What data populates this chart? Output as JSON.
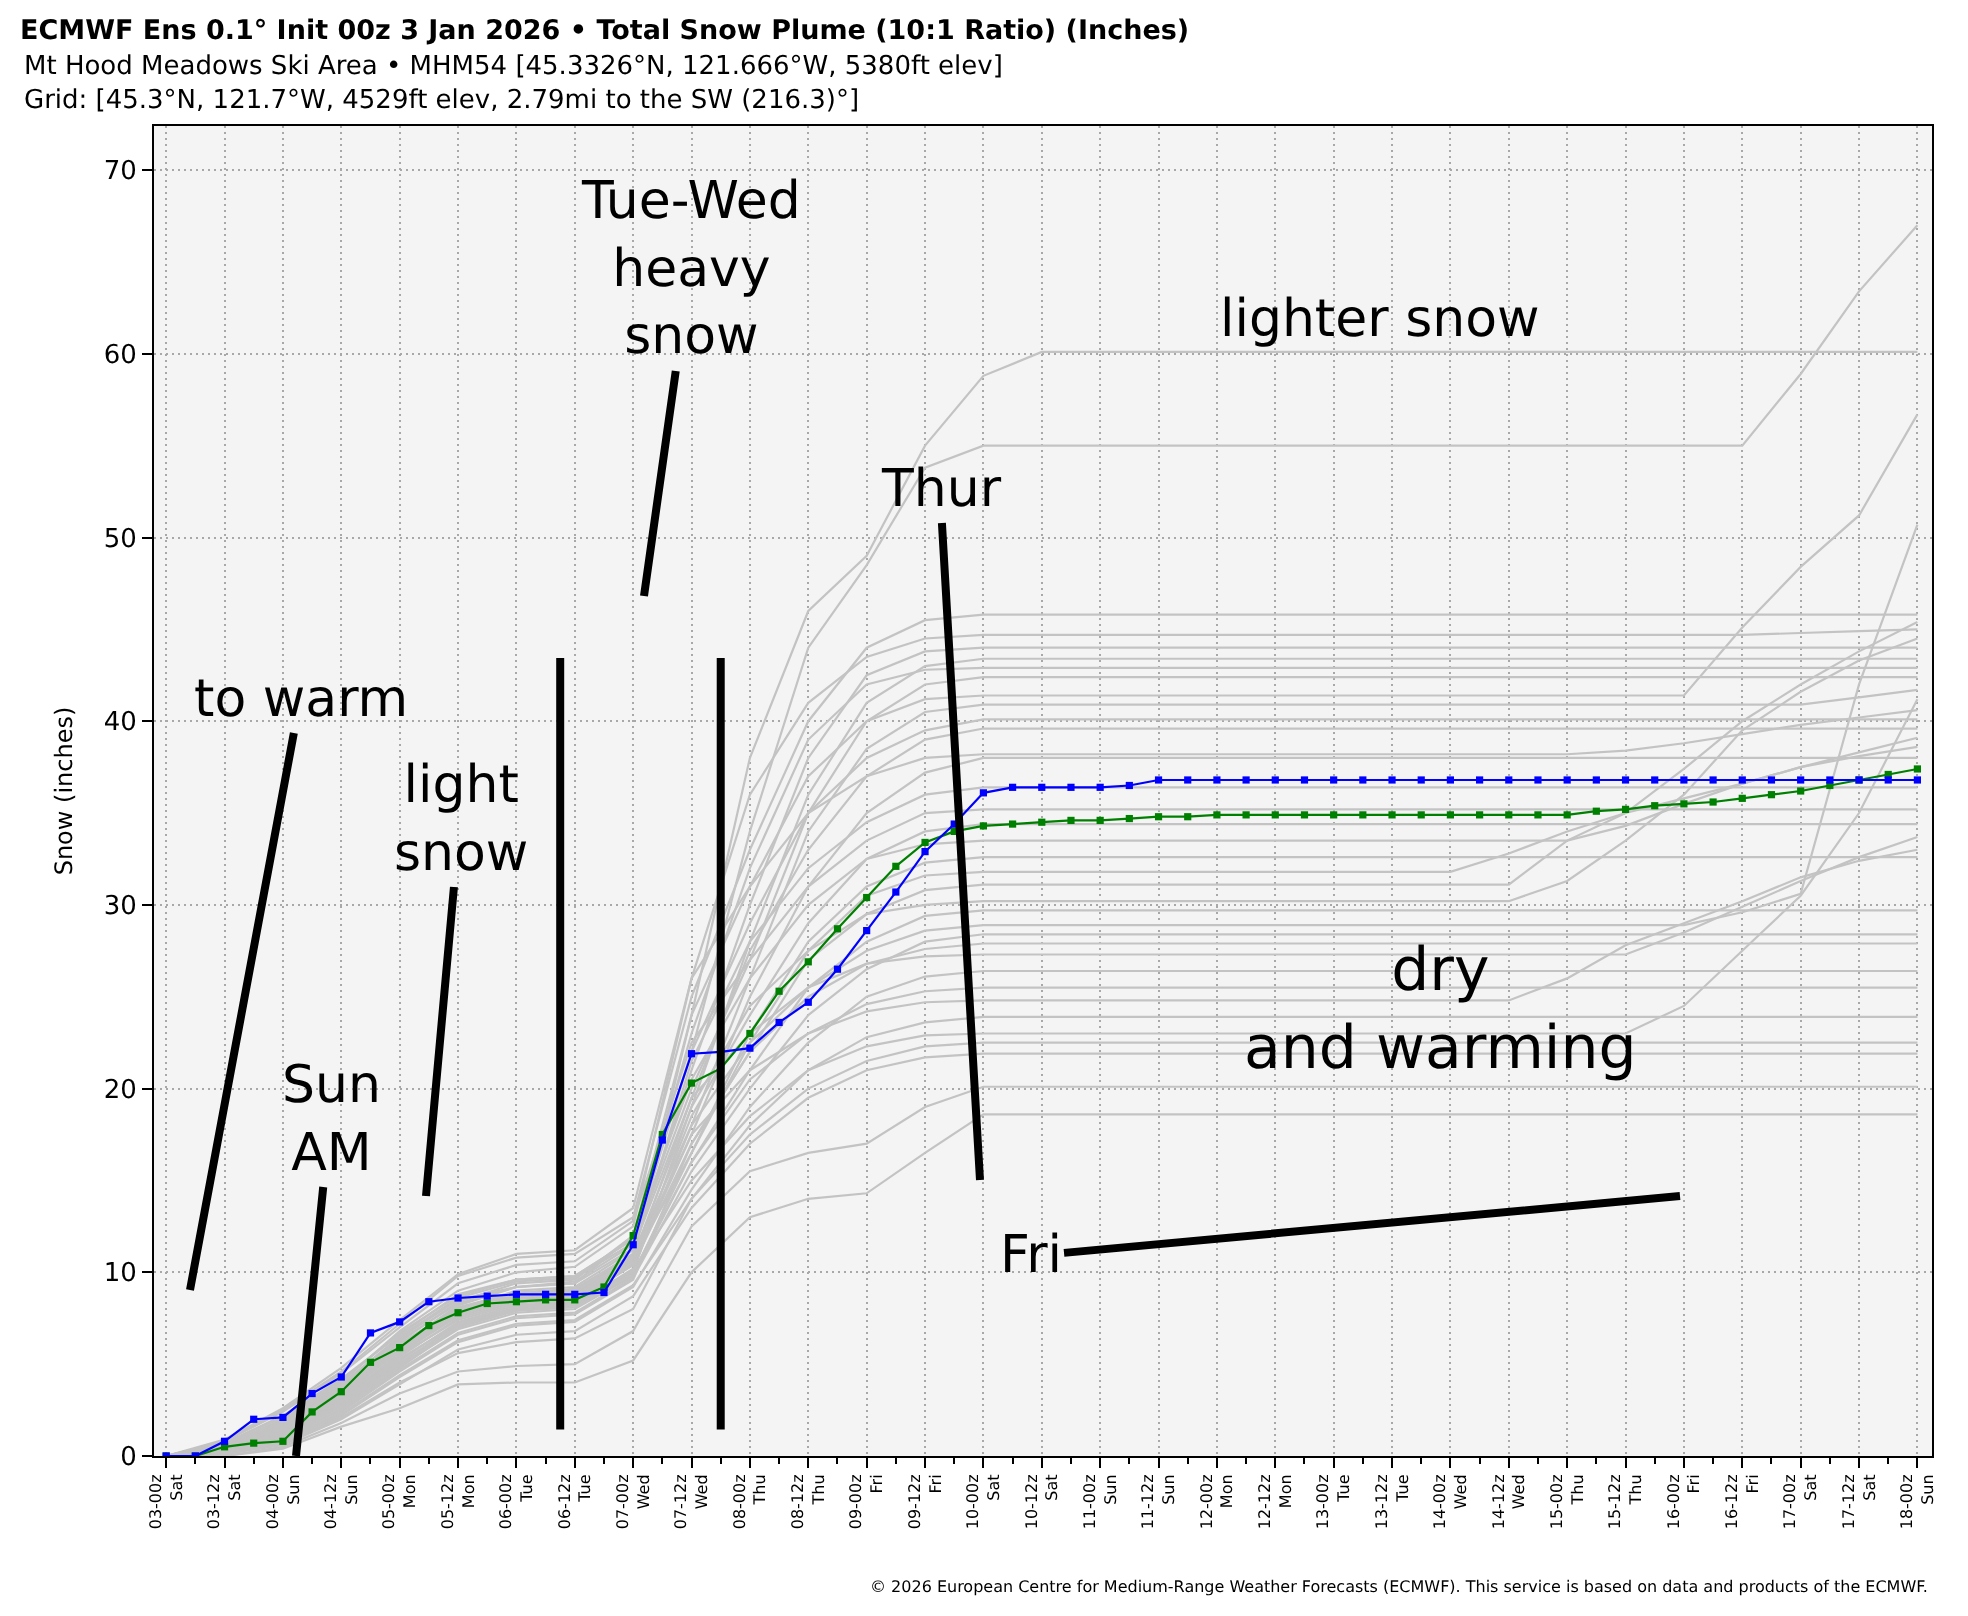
{
  "chart_data": {
    "type": "line",
    "title": "ECMWF Ens 0.1° Init 00z 3 Jan 2026 • Total Snow Plume (10:1 Ratio) (Inches)",
    "subtitle": "Mt Hood Meadows Ski Area • MHM54 [45.3326°N, 121.666°W, 5380ft elev]\nGrid: [45.3°N, 121.7°W, 4529ft elev, 2.79mi to the SW (216.3)°]",
    "ylabel": "Snow (inches)",
    "annotations": [
      "Tue-Wed\nheavy\nsnow",
      "lighter snow",
      "Thur",
      "to warm",
      "light\nsnow",
      "Sun\nAM",
      "dry\nand warming",
      "Fri",
      "© 2026 European Centre for Medium-Range Weather Forecasts (ECMWF). This service is based on data and products of the ECMWF."
    ],
    "x": [
      "2026-01-03T00:00",
      "2026-01-03T12:00",
      "2026-01-04T00:00",
      "2026-01-04T12:00",
      "2026-01-05T00:00",
      "2026-01-05T12:00",
      "2026-01-06T00:00",
      "2026-01-06T12:00",
      "2026-01-07T00:00",
      "2026-01-07T12:00",
      "2026-01-08T00:00",
      "2026-01-08T12:00",
      "2026-01-09T00:00",
      "2026-01-09T12:00",
      "2026-01-10T00:00",
      "2026-01-10T12:00",
      "2026-01-11T00:00",
      "2026-01-11T12:00",
      "2026-01-12T00:00",
      "2026-01-12T12:00",
      "2026-01-13T00:00",
      "2026-01-13T12:00",
      "2026-01-14T00:00",
      "2026-01-14T12:00",
      "2026-01-15T00:00",
      "2026-01-15T12:00",
      "2026-01-16T00:00",
      "2026-01-16T12:00",
      "2026-01-17T00:00",
      "2026-01-17T12:00",
      "2026-01-18T00:00"
    ],
    "xlim": [
      "2026-01-02T21:30",
      "2026-01-18T03:00"
    ],
    "ylim": [
      0,
      72.4
    ],
    "xticks": [
      {
        "value": "2026-01-03T00:00",
        "label": "03-00z\nSat"
      },
      {
        "value": "2026-01-03T06:00",
        "label": null
      },
      {
        "value": "2026-01-03T12:00",
        "label": "03-12z\nSat"
      },
      {
        "value": "2026-01-03T18:00",
        "label": null
      },
      {
        "value": "2026-01-04T00:00",
        "label": "04-00z\nSun"
      },
      {
        "value": "2026-01-04T06:00",
        "label": null
      },
      {
        "value": "2026-01-04T12:00",
        "label": "04-12z\nSun"
      },
      {
        "value": "2026-01-04T18:00",
        "label": null
      },
      {
        "value": "2026-01-05T00:00",
        "label": "05-00z\nMon"
      },
      {
        "value": "2026-01-05T06:00",
        "label": null
      },
      {
        "value": "2026-01-05T12:00",
        "label": "05-12z\nMon"
      },
      {
        "value": "2026-01-05T18:00",
        "label": null
      },
      {
        "value": "2026-01-06T00:00",
        "label": "06-00z\nTue"
      },
      {
        "value": "2026-01-06T06:00",
        "label": null
      },
      {
        "value": "2026-01-06T12:00",
        "label": "06-12z\nTue"
      },
      {
        "value": "2026-01-06T18:00",
        "label": null
      },
      {
        "value": "2026-01-07T00:00",
        "label": "07-00z\nWed"
      },
      {
        "value": "2026-01-07T06:00",
        "label": null
      },
      {
        "value": "2026-01-07T12:00",
        "label": "07-12z\nWed"
      },
      {
        "value": "2026-01-07T18:00",
        "label": null
      },
      {
        "value": "2026-01-08T00:00",
        "label": "08-00z\nThu"
      },
      {
        "value": "2026-01-08T06:00",
        "label": null
      },
      {
        "value": "2026-01-08T12:00",
        "label": "08-12z\nThu"
      },
      {
        "value": "2026-01-08T18:00",
        "label": null
      },
      {
        "value": "2026-01-09T00:00",
        "label": "09-00z\nFri"
      },
      {
        "value": "2026-01-09T06:00",
        "label": null
      },
      {
        "value": "2026-01-09T12:00",
        "label": "09-12z\nFri"
      },
      {
        "value": "2026-01-09T18:00",
        "label": null
      },
      {
        "value": "2026-01-10T00:00",
        "label": "10-00z\nSat"
      },
      {
        "value": "2026-01-10T06:00",
        "label": null
      },
      {
        "value": "2026-01-10T12:00",
        "label": "10-12z\nSat"
      },
      {
        "value": "2026-01-10T18:00",
        "label": null
      },
      {
        "value": "2026-01-11T00:00",
        "label": "11-00z\nSun"
      },
      {
        "value": "2026-01-11T06:00",
        "label": null
      },
      {
        "value": "2026-01-11T12:00",
        "label": "11-12z\nSun"
      },
      {
        "value": "2026-01-11T18:00",
        "label": null
      },
      {
        "value": "2026-01-12T00:00",
        "label": "12-00z\nMon"
      },
      {
        "value": "2026-01-12T06:00",
        "label": null
      },
      {
        "value": "2026-01-12T12:00",
        "label": "12-12z\nMon"
      },
      {
        "value": "2026-01-12T18:00",
        "label": null
      },
      {
        "value": "2026-01-13T00:00",
        "label": "13-00z\nTue"
      },
      {
        "value": "2026-01-13T06:00",
        "label": null
      },
      {
        "value": "2026-01-13T12:00",
        "label": "13-12z\nTue"
      },
      {
        "value": "2026-01-13T18:00",
        "label": null
      },
      {
        "value": "2026-01-14T00:00",
        "label": "14-00z\nWed"
      },
      {
        "value": "2026-01-14T06:00",
        "label": null
      },
      {
        "value": "2026-01-14T12:00",
        "label": "14-12z\nWed"
      },
      {
        "value": "2026-01-14T18:00",
        "label": null
      },
      {
        "value": "2026-01-15T00:00",
        "label": "15-00z\nThu"
      },
      {
        "value": "2026-01-15T06:00",
        "label": null
      },
      {
        "value": "2026-01-15T12:00",
        "label": "15-12z\nThu"
      },
      {
        "value": "2026-01-15T18:00",
        "label": null
      },
      {
        "value": "2026-01-16T00:00",
        "label": "16-00z\nFri"
      },
      {
        "value": "2026-01-16T06:00",
        "label": null
      },
      {
        "value": "2026-01-16T12:00",
        "label": "16-12z\nFri"
      },
      {
        "value": "2026-01-16T18:00",
        "label": null
      },
      {
        "value": "2026-01-17T00:00",
        "label": "17-00z\nSat"
      },
      {
        "value": "2026-01-17T06:00",
        "label": null
      },
      {
        "value": "2026-01-17T12:00",
        "label": "17-12z\nSat"
      },
      {
        "value": "2026-01-17T18:00",
        "label": null
      },
      {
        "value": "2026-01-18T00:00",
        "label": "18-00z\nSun"
      }
    ],
    "yticks": [
      0,
      10,
      20,
      30,
      40,
      50,
      60,
      70
    ],
    "grid": true,
    "marker": "square",
    "ref_lines": [
      {
        "axis": "x",
        "value": "2026-01-06T09:00",
        "color": "#000000"
      },
      {
        "axis": "x",
        "value": "2026-01-07T18:00",
        "color": "#000000"
      }
    ],
    "series": [
      {
        "color": "#c3c3c3",
        "marker": "none",
        "values": [
          0,
          0.3,
          1.2,
          3,
          5.5,
          7.8,
          8.6,
          8.8,
          11,
          24,
          38,
          46,
          49,
          55,
          58.8,
          60.1,
          60.1,
          60.1,
          60.1,
          60.1,
          60.1,
          60.1,
          60.1,
          60.1,
          60.1,
          60.1,
          60.1,
          60.1,
          60.1,
          60.1,
          60.1
        ]
      },
      {
        "color": "#c3c3c3",
        "marker": "none",
        "values": [
          0,
          0.5,
          1.8,
          3.8,
          6.4,
          8.5,
          9.2,
          9.4,
          12,
          22,
          34,
          44,
          48.5,
          53.8,
          55,
          55,
          55,
          55,
          55,
          55,
          55,
          55,
          55,
          55,
          55,
          55,
          55,
          55,
          58.9,
          63.4,
          67
        ]
      },
      {
        "color": "#c3c3c3",
        "marker": "none",
        "values": [
          0,
          0.8,
          2.5,
          4.6,
          7.2,
          9.8,
          10.8,
          11,
          13,
          25,
          33,
          40,
          44,
          45.5,
          45.8,
          45.8,
          45.8,
          45.8,
          45.8,
          45.8,
          45.8,
          45.8,
          45.8,
          45.8,
          45.8,
          45.8,
          45.8,
          45.8,
          45.8,
          45.8,
          45.8
        ]
      },
      {
        "color": "#c3c3c3",
        "marker": "none",
        "values": [
          0,
          0.6,
          2,
          4,
          6.8,
          9,
          10,
          10.3,
          12.5,
          26,
          36,
          41,
          43.5,
          44.5,
          44.7,
          44.7,
          44.7,
          44.7,
          44.7,
          44.7,
          44.7,
          44.7,
          44.7,
          44.7,
          44.7,
          44.7,
          44.7,
          44.7,
          44.8,
          44.9,
          45
        ]
      },
      {
        "color": "#c3c3c3",
        "marker": "none",
        "values": [
          0,
          0.4,
          1.5,
          3.2,
          5.8,
          8,
          9,
          9.2,
          11.2,
          21,
          30,
          38,
          42.5,
          43.8,
          44,
          44,
          44,
          44,
          44,
          44,
          44,
          44,
          44,
          44,
          44,
          44,
          44,
          44,
          44,
          44,
          44
        ]
      },
      {
        "color": "#c3c3c3",
        "marker": "none",
        "values": [
          0,
          0.2,
          1,
          2.8,
          5,
          7.2,
          8.1,
          8.3,
          10,
          19,
          28,
          36,
          41,
          43,
          43.4,
          43.4,
          43.4,
          43.4,
          43.4,
          43.4,
          43.4,
          43.4,
          43.4,
          43.4,
          43.4,
          43.4,
          43.4,
          43.4,
          43.4,
          43.4,
          43.4
        ]
      },
      {
        "color": "#c3c3c3",
        "marker": "none",
        "values": [
          0,
          0.7,
          2.2,
          4.2,
          6.6,
          8.8,
          9.6,
          9.8,
          11.8,
          23,
          32,
          39,
          42,
          42.8,
          42.9,
          42.9,
          42.9,
          42.9,
          42.9,
          42.9,
          42.9,
          42.9,
          42.9,
          42.9,
          42.9,
          42.9,
          42.9,
          42.9,
          42.9,
          42.9,
          42.9
        ]
      },
      {
        "color": "#c3c3c3",
        "marker": "none",
        "values": [
          0,
          0.3,
          1.4,
          3.4,
          6,
          8.2,
          9.2,
          9.5,
          11.5,
          20,
          27,
          35,
          40,
          42,
          42.4,
          42.4,
          42.4,
          42.4,
          42.4,
          42.4,
          42.4,
          42.4,
          42.4,
          42.4,
          42.4,
          42.4,
          42.4,
          42.4,
          42.4,
          42.4,
          42.4
        ]
      },
      {
        "color": "#c3c3c3",
        "marker": "none",
        "values": [
          0,
          0.5,
          1.6,
          3.6,
          6.2,
          8.4,
          9.4,
          9.6,
          12,
          24,
          31,
          37,
          40,
          41.2,
          41.4,
          41.4,
          41.4,
          41.4,
          41.4,
          41.4,
          41.4,
          41.4,
          41.4,
          41.4,
          41.4,
          41.4,
          41.4,
          45.1,
          48.4,
          51.2,
          56.7
        ]
      },
      {
        "color": "#c3c3c3",
        "marker": "none",
        "values": [
          0,
          0.1,
          0.9,
          2.6,
          4.8,
          7,
          8,
          8.2,
          10.2,
          18,
          26,
          34,
          38.5,
          40.5,
          40.9,
          40.9,
          40.9,
          40.9,
          40.9,
          40.9,
          40.9,
          40.9,
          40.9,
          40.9,
          40.9,
          40.9,
          40.9,
          40.9,
          40.9,
          41.3,
          41.7
        ]
      },
      {
        "color": "#c3c3c3",
        "marker": "none",
        "values": [
          0,
          0.6,
          1.9,
          3.9,
          6.5,
          8.6,
          9.5,
          9.7,
          11.6,
          22,
          29,
          35,
          38,
          39.5,
          40.1,
          40.1,
          40.1,
          40.1,
          40.1,
          40.1,
          40.1,
          40.1,
          40.1,
          40.1,
          40.1,
          40.1,
          40.1,
          40.1,
          40.1,
          40.1,
          40.1
        ]
      },
      {
        "color": "#c3c3c3",
        "marker": "none",
        "values": [
          0,
          0.4,
          1.3,
          3.1,
          5.6,
          7.6,
          8.5,
          8.7,
          10.6,
          19.5,
          27.5,
          33,
          37,
          39,
          39.6,
          39.6,
          39.6,
          39.6,
          39.6,
          39.6,
          39.6,
          39.6,
          39.6,
          39.6,
          39.6,
          39.6,
          39.6,
          39.6,
          39.6,
          39.6,
          39.6
        ]
      },
      {
        "color": "#c3c3c3",
        "marker": "none",
        "values": [
          0,
          0.9,
          2.6,
          4.8,
          7.4,
          9.9,
          11,
          11.2,
          13.5,
          26,
          31,
          35,
          37,
          38,
          38.2,
          38.2,
          38.2,
          38.2,
          38.2,
          38.2,
          38.2,
          38.2,
          38.2,
          38.2,
          38.2,
          38.4,
          38.8,
          39.3,
          39.8,
          40.2,
          40.6
        ]
      },
      {
        "color": "#c3c3c3",
        "marker": "none",
        "values": [
          0,
          0.2,
          1.1,
          2.9,
          5.2,
          7.3,
          8.2,
          8.4,
          10.4,
          17.5,
          25,
          31,
          35,
          37.2,
          38,
          38,
          38,
          38,
          38,
          38,
          38,
          38,
          38,
          38,
          38,
          38,
          38,
          38,
          38,
          38,
          38
        ]
      },
      {
        "color": "#c3c3c3",
        "marker": "none",
        "values": [
          0,
          0.5,
          1.7,
          3.7,
          6.1,
          8.1,
          8.9,
          9.1,
          11,
          21.5,
          28,
          32,
          34.5,
          36,
          36.4,
          36.4,
          36.4,
          36.4,
          36.4,
          36.4,
          36.4,
          36.4,
          36.4,
          36.4,
          36.4,
          36.4,
          36.4,
          36.4,
          36.4,
          36.4,
          36.4
        ]
      },
      {
        "color": "#c3c3c3",
        "marker": "none",
        "values": [
          0,
          0.3,
          1.2,
          3,
          5.4,
          7.5,
          8.4,
          8.6,
          10.5,
          18.5,
          24,
          29,
          32.5,
          34,
          34.4,
          34.4,
          34.4,
          34.4,
          34.4,
          34.4,
          34.4,
          34.4,
          34.4,
          34.4,
          34.4,
          34.4,
          34.4,
          34.4,
          34.4,
          34.4,
          34.4
        ]
      },
      {
        "color": "#c3c3c3",
        "marker": "none",
        "values": [
          0,
          0.7,
          2.1,
          4.1,
          6.7,
          8.7,
          9.6,
          9.8,
          11.8,
          20.5,
          26,
          30,
          32.5,
          33.3,
          33.5,
          33.5,
          33.5,
          33.5,
          33.5,
          33.5,
          33.5,
          33.5,
          33.5,
          33.5,
          33.5,
          34.3,
          35.5,
          36.6,
          37.5,
          38.1,
          38.6
        ]
      },
      {
        "color": "#c3c3c3",
        "marker": "none",
        "values": [
          0,
          0.4,
          1.4,
          3.3,
          5.7,
          7.7,
          8.6,
          8.8,
          10.7,
          16.5,
          23,
          28,
          31,
          32.3,
          32.6,
          32.6,
          32.6,
          32.6,
          32.6,
          32.6,
          32.6,
          32.6,
          32.6,
          32.6,
          32.6,
          32.6,
          32.6,
          32.6,
          32.6,
          32.6,
          32.6
        ]
      },
      {
        "color": "#c3c3c3",
        "marker": "none",
        "values": [
          0,
          0.1,
          0.8,
          2.4,
          4.6,
          6.6,
          7.5,
          7.7,
          9.6,
          17,
          22,
          27,
          29.5,
          30.8,
          31.1,
          31.1,
          31.1,
          31.1,
          31.1,
          31.1,
          31.1,
          31.1,
          31.1,
          31.1,
          33.5,
          35,
          37.4,
          40,
          42,
          43.8,
          45.4
        ]
      },
      {
        "color": "#c3c3c3",
        "marker": "none",
        "values": [
          0,
          0.5,
          1.6,
          3.5,
          5.9,
          7.9,
          8.8,
          9,
          10.9,
          19,
          24.5,
          27.5,
          29.5,
          30,
          30.2,
          30.2,
          30.2,
          30.2,
          30.2,
          30.2,
          30.2,
          30.2,
          30.2,
          30.2,
          31.3,
          33.5,
          36,
          39.5,
          41.6,
          43.3,
          44.5
        ]
      },
      {
        "color": "#c3c3c3",
        "marker": "none",
        "values": [
          0,
          0.3,
          1,
          2.7,
          4.9,
          6.9,
          7.8,
          8,
          9.8,
          16,
          21,
          25.5,
          28,
          29.4,
          29.7,
          29.7,
          29.7,
          29.7,
          29.7,
          29.7,
          29.7,
          29.7,
          29.7,
          29.7,
          29.7,
          29.7,
          29.7,
          29.7,
          29.7,
          29.7,
          29.7
        ]
      },
      {
        "color": "#c3c3c3",
        "marker": "none",
        "values": [
          0,
          0.6,
          1.8,
          3.6,
          6,
          8,
          8.8,
          9,
          11,
          18,
          22.5,
          25.5,
          27.5,
          28.6,
          28.9,
          28.9,
          28.9,
          28.9,
          28.9,
          28.9,
          28.9,
          28.9,
          28.9,
          28.9,
          28.9,
          28.9,
          28.9,
          29.6,
          30.6,
          42,
          50.7
        ]
      },
      {
        "color": "#c3c3c3",
        "marker": "none",
        "values": [
          0,
          0.2,
          0.9,
          2.5,
          4.7,
          6.7,
          7.6,
          7.8,
          9.7,
          15.5,
          20,
          24,
          26.5,
          28,
          28.4,
          28.4,
          28.4,
          28.4,
          28.4,
          28.4,
          28.4,
          28.4,
          28.4,
          28.4,
          28.4,
          28.4,
          28.4,
          28.4,
          28.4,
          28.4,
          28.4
        ]
      },
      {
        "color": "#c3c3c3",
        "marker": "none",
        "values": [
          0,
          0.4,
          1.3,
          3.2,
          5.5,
          7.4,
          8.3,
          8.5,
          10.4,
          17,
          22,
          25,
          26.8,
          27.6,
          27.9,
          27.9,
          27.9,
          27.9,
          27.9,
          27.9,
          27.9,
          27.9,
          27.9,
          27.9,
          27.9,
          27.9,
          27.9,
          27.9,
          27.9,
          27.9,
          27.9
        ]
      },
      {
        "color": "#c3c3c3",
        "marker": "none",
        "values": [
          0,
          0.6,
          1.9,
          3.8,
          6.3,
          8.3,
          9.2,
          9.4,
          11.3,
          19.5,
          23,
          25.5,
          26.8,
          27.2,
          27.3,
          27.3,
          27.3,
          27.3,
          27.3,
          27.3,
          27.3,
          27.3,
          27.3,
          27.3,
          27.3,
          27.3,
          28.5,
          29.9,
          31.3,
          32.6,
          33.7
        ]
      },
      {
        "color": "#c3c3c3",
        "marker": "none",
        "values": [
          0,
          0.1,
          0.7,
          2.2,
          4.3,
          6.2,
          7.1,
          7.3,
          9.2,
          14.5,
          19,
          22.5,
          25,
          26.1,
          26.4,
          26.4,
          26.4,
          26.4,
          26.4,
          26.4,
          26.4,
          26.4,
          26.4,
          26.4,
          26.4,
          26.4,
          26.4,
          26.4,
          26.4,
          26.4,
          26.4
        ]
      },
      {
        "color": "#c3c3c3",
        "marker": "none",
        "values": [
          0,
          0.3,
          1.1,
          2.9,
          5.1,
          7.1,
          8,
          8.2,
          10,
          16,
          20.5,
          23,
          24.6,
          25.3,
          25.5,
          25.5,
          25.5,
          25.5,
          25.5,
          25.5,
          25.5,
          25.5,
          25.5,
          25.5,
          25.5,
          25.5,
          25.5,
          25.5,
          25.5,
          25.5,
          25.5
        ]
      },
      {
        "color": "#c3c3c3",
        "marker": "none",
        "values": [
          0,
          0.5,
          1.5,
          3.4,
          5.8,
          7.8,
          8.7,
          8.9,
          10.8,
          17.5,
          21,
          23,
          24.2,
          24.7,
          24.8,
          24.8,
          24.8,
          24.8,
          24.8,
          24.8,
          24.8,
          24.8,
          24.8,
          24.8,
          26,
          27.8,
          29,
          30.2,
          31.5,
          32.4,
          33
        ]
      },
      {
        "color": "#c3c3c3",
        "marker": "none",
        "values": [
          0,
          0.2,
          0.8,
          2.3,
          4.4,
          6.3,
          7.2,
          7.4,
          9.3,
          14,
          18,
          21,
          22.8,
          23.6,
          23.9,
          23.9,
          23.9,
          23.9,
          23.9,
          23.9,
          23.9,
          23.9,
          23.9,
          23.9,
          23.9,
          23.9,
          23.9,
          23.9,
          23.9,
          23.9,
          23.9
        ]
      },
      {
        "color": "#c3c3c3",
        "marker": "none",
        "values": [
          0,
          0.4,
          1.2,
          3,
          5.3,
          7.2,
          8.1,
          8.3,
          10.1,
          15,
          18.5,
          21,
          22.3,
          22.9,
          23,
          23,
          23,
          23,
          23,
          23,
          23,
          23,
          23,
          23,
          23,
          23,
          24.5,
          27.5,
          30.5,
          35,
          41.2
        ]
      },
      {
        "color": "#c3c3c3",
        "marker": "none",
        "values": [
          0,
          0.1,
          0.6,
          2,
          3.9,
          5.8,
          6.6,
          6.8,
          8.7,
          13.5,
          17,
          19.5,
          21,
          21.7,
          21.9,
          21.9,
          21.9,
          21.9,
          21.9,
          21.9,
          21.9,
          21.9,
          21.9,
          21.9,
          21.9,
          21.9,
          21.9,
          21.9,
          21.9,
          21.9,
          21.9
        ]
      },
      {
        "color": "#c3c3c3",
        "marker": "none",
        "values": [
          0,
          0,
          0.5,
          1.8,
          3.4,
          4.6,
          4.9,
          5,
          6.8,
          12.5,
          15.5,
          16.5,
          17,
          19,
          20.1,
          20.1,
          20.1,
          20.1,
          20.1,
          20.1,
          20.1,
          20.1,
          20.1,
          20.1,
          20.1,
          20.1,
          20.1,
          20.1,
          20.1,
          20.1,
          20.1
        ]
      },
      {
        "color": "#c3c3c3",
        "marker": "none",
        "values": [
          0,
          0,
          0.4,
          1.6,
          2.6,
          3.9,
          4,
          4,
          5.2,
          10,
          13,
          14,
          14.3,
          16.5,
          18.6,
          18.6,
          18.6,
          18.6,
          18.6,
          18.6,
          18.6,
          18.6,
          18.6,
          18.6,
          18.6,
          18.6,
          18.6,
          18.6,
          18.6,
          18.6,
          18.6
        ]
      },
      {
        "color": "#c3c3c3",
        "marker": "none",
        "values": [
          0,
          0.8,
          2.4,
          4.5,
          7,
          9.4,
          10.4,
          10.6,
          12.8,
          22.5,
          27,
          31,
          33.5,
          35,
          35.2,
          35.2,
          35.2,
          35.2,
          35.2,
          35.2,
          35.2,
          35.2,
          35.2,
          35.2,
          35.2,
          35.2,
          35.2,
          35.2,
          35.2,
          35.2,
          35.2
        ]
      },
      {
        "color": "#c3c3c3",
        "marker": "none",
        "values": [
          0,
          0.3,
          1.1,
          2.8,
          5,
          7,
          7.9,
          8.1,
          9.9,
          16.5,
          22.5,
          27.5,
          30.5,
          31.6,
          31.8,
          31.8,
          31.8,
          31.8,
          31.8,
          31.8,
          31.8,
          31.8,
          31.8,
          32.8,
          34,
          35,
          35.8,
          36.6,
          37.5,
          38.3,
          39.1
        ]
      },
      {
        "color": "#c3c3c3",
        "marker": "none",
        "values": [
          0,
          0.2,
          0.7,
          2.1,
          4,
          5.6,
          6.2,
          6.4,
          8,
          14,
          17.5,
          20,
          21.5,
          22.3,
          22.5,
          22.5,
          22.5,
          22.5,
          22.5,
          22.5,
          22.5,
          22.5,
          22.5,
          22.5,
          22.5,
          22.5,
          22.5,
          22.5,
          22.5,
          22.5,
          22.5
        ]
      },
      {
        "color": "#008000",
        "x": [
          "2026-01-03T00:00",
          "2026-01-03T06:00",
          "2026-01-03T12:00",
          "2026-01-03T18:00",
          "2026-01-04T00:00",
          "2026-01-04T06:00",
          "2026-01-04T12:00",
          "2026-01-04T18:00",
          "2026-01-05T00:00",
          "2026-01-05T06:00",
          "2026-01-05T12:00",
          "2026-01-05T18:00",
          "2026-01-06T00:00",
          "2026-01-06T06:00",
          "2026-01-06T12:00",
          "2026-01-06T18:00",
          "2026-01-07T00:00",
          "2026-01-07T06:00",
          "2026-01-07T12:00",
          "2026-01-07T18:00",
          "2026-01-08T00:00",
          "2026-01-08T06:00",
          "2026-01-08T12:00",
          "2026-01-08T18:00",
          "2026-01-09T00:00",
          "2026-01-09T06:00",
          "2026-01-09T12:00",
          "2026-01-09T18:00",
          "2026-01-10T00:00",
          "2026-01-10T06:00",
          "2026-01-10T12:00",
          "2026-01-10T18:00",
          "2026-01-11T00:00",
          "2026-01-11T06:00",
          "2026-01-11T12:00",
          "2026-01-11T18:00",
          "2026-01-12T00:00",
          "2026-01-12T06:00",
          "2026-01-12T12:00",
          "2026-01-12T18:00",
          "2026-01-13T00:00",
          "2026-01-13T06:00",
          "2026-01-13T12:00",
          "2026-01-13T18:00",
          "2026-01-14T00:00",
          "2026-01-14T06:00",
          "2026-01-14T12:00",
          "2026-01-14T18:00",
          "2026-01-15T00:00",
          "2026-01-15T06:00",
          "2026-01-15T12:00",
          "2026-01-15T18:00",
          "2026-01-16T00:00",
          "2026-01-16T06:00",
          "2026-01-16T12:00",
          "2026-01-16T18:00",
          "2026-01-17T00:00",
          "2026-01-17T06:00",
          "2026-01-17T12:00",
          "2026-01-17T18:00",
          "2026-01-18T00:00"
        ],
        "values": [
          0,
          0,
          0.5,
          0.7,
          0.8,
          2.4,
          3.5,
          5.1,
          5.9,
          7.1,
          7.8,
          8.3,
          8.4,
          8.5,
          8.5,
          9.2,
          12,
          17.5,
          20.3,
          21.1,
          23,
          25.3,
          26.9,
          28.7,
          30.4,
          32.1,
          33.4,
          34,
          34.3,
          34.4,
          34.5,
          34.6,
          34.6,
          34.7,
          34.8,
          34.8,
          34.9,
          34.9,
          34.9,
          34.9,
          34.9,
          34.9,
          34.9,
          34.9,
          34.9,
          34.9,
          34.9,
          34.9,
          34.9,
          35.1,
          35.2,
          35.4,
          35.5,
          35.6,
          35.8,
          36,
          36.2,
          36.5,
          36.8,
          37.1,
          37.4
        ]
      },
      {
        "color": "#0000ff",
        "x": [
          "2026-01-03T00:00",
          "2026-01-03T06:00",
          "2026-01-03T12:00",
          "2026-01-03T18:00",
          "2026-01-04T00:00",
          "2026-01-04T06:00",
          "2026-01-04T12:00",
          "2026-01-04T18:00",
          "2026-01-05T00:00",
          "2026-01-05T06:00",
          "2026-01-05T12:00",
          "2026-01-05T18:00",
          "2026-01-06T00:00",
          "2026-01-06T06:00",
          "2026-01-06T12:00",
          "2026-01-06T18:00",
          "2026-01-07T00:00",
          "2026-01-07T06:00",
          "2026-01-07T12:00",
          "2026-01-07T18:00",
          "2026-01-08T00:00",
          "2026-01-08T06:00",
          "2026-01-08T12:00",
          "2026-01-08T18:00",
          "2026-01-09T00:00",
          "2026-01-09T06:00",
          "2026-01-09T12:00",
          "2026-01-09T18:00",
          "2026-01-10T00:00",
          "2026-01-10T06:00",
          "2026-01-10T12:00",
          "2026-01-10T18:00",
          "2026-01-11T00:00",
          "2026-01-11T06:00",
          "2026-01-11T12:00",
          "2026-01-11T18:00",
          "2026-01-12T00:00",
          "2026-01-12T06:00",
          "2026-01-12T12:00",
          "2026-01-12T18:00",
          "2026-01-13T00:00",
          "2026-01-13T06:00",
          "2026-01-13T12:00",
          "2026-01-13T18:00",
          "2026-01-14T00:00",
          "2026-01-14T06:00",
          "2026-01-14T12:00",
          "2026-01-14T18:00",
          "2026-01-15T00:00",
          "2026-01-15T06:00",
          "2026-01-15T12:00",
          "2026-01-15T18:00",
          "2026-01-16T00:00",
          "2026-01-16T06:00",
          "2026-01-16T12:00",
          "2026-01-16T18:00",
          "2026-01-17T00:00",
          "2026-01-17T06:00",
          "2026-01-17T12:00",
          "2026-01-17T18:00",
          "2026-01-18T00:00"
        ],
        "values": [
          0,
          0,
          0.8,
          2,
          2.1,
          3.4,
          4.3,
          6.7,
          7.3,
          8.4,
          8.6,
          8.7,
          8.8,
          8.8,
          8.8,
          8.9,
          11.5,
          17.2,
          21.9,
          22,
          22.2,
          23.6,
          24.7,
          26.5,
          28.6,
          30.7,
          32.9,
          34.4,
          36.1,
          36.4,
          36.4,
          36.4,
          36.4,
          36.5,
          36.8,
          36.8,
          36.8,
          36.8,
          36.8,
          36.8,
          36.8,
          36.8,
          36.8,
          36.8,
          36.8,
          36.8,
          36.8,
          36.8,
          36.8,
          36.8,
          36.8,
          36.8,
          36.8,
          36.8,
          36.8,
          36.8,
          36.8,
          36.8,
          36.8,
          36.8,
          36.8
        ]
      }
    ]
  }
}
